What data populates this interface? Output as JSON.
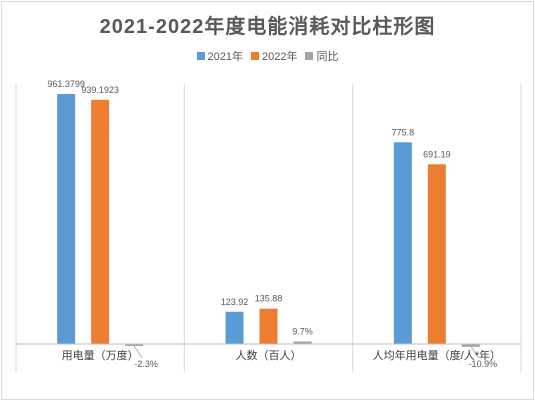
{
  "chart_data": {
    "type": "bar",
    "title": "2021-2022年度电能消耗对比柱形图",
    "legend_position": "top",
    "categories": [
      "用电量（万度）",
      "人数（百人）",
      "人均年用电量（度/人*年）"
    ],
    "series": [
      {
        "name": "2021年",
        "color": "#5b9bd5",
        "values": [
          961.3799,
          123.92,
          775.8
        ],
        "labels": [
          "961.3799",
          "123.92",
          "775.8"
        ]
      },
      {
        "name": "2022年",
        "color": "#ed7d31",
        "values": [
          939.1923,
          135.88,
          691.19
        ],
        "labels": [
          "939.1923",
          "135.88",
          "691.19"
        ]
      },
      {
        "name": "同比",
        "color": "#a5a5a5",
        "values": [
          -2.3,
          9.7,
          -10.9
        ],
        "labels": [
          "-2.3%",
          "9.7%",
          "-10.9%"
        ]
      }
    ],
    "ylim": [
      0,
      1000
    ],
    "grid": false
  }
}
